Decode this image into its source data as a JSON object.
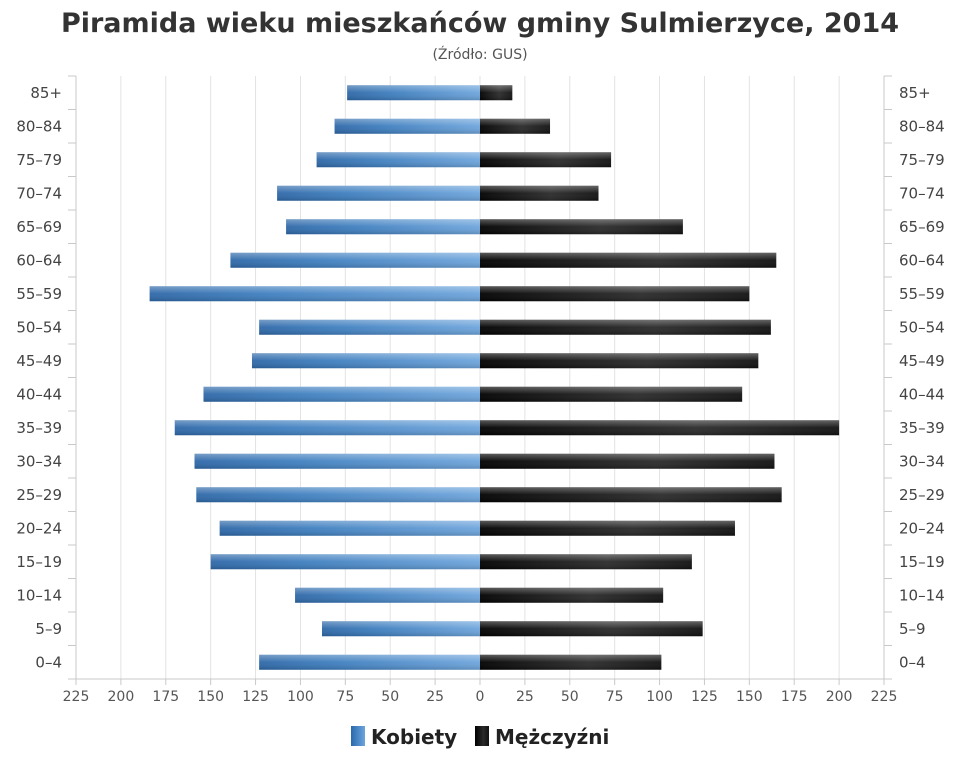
{
  "chart_data": {
    "type": "bar",
    "orientation": "horizontal-pyramid",
    "title": "Piramida wieku mieszkańców gminy Sulmierzyce, 2014",
    "subtitle": "(Źródło: GUS)",
    "categories": [
      "85+",
      "80–84",
      "75–79",
      "70–74",
      "65–69",
      "60–64",
      "55–59",
      "50–54",
      "45–49",
      "40–44",
      "35–39",
      "30–34",
      "25–29",
      "20–24",
      "15–19",
      "10–14",
      "5–9",
      "0–4"
    ],
    "series": [
      {
        "name": "Kobiety",
        "side": "left",
        "color": "#3f7fbf",
        "values": [
          74,
          81,
          91,
          113,
          108,
          139,
          184,
          123,
          127,
          154,
          170,
          159,
          158,
          145,
          150,
          103,
          88,
          123
        ]
      },
      {
        "name": "Mężczyźni",
        "side": "right",
        "color": "#1a1a1a",
        "values": [
          18,
          39,
          73,
          66,
          113,
          165,
          150,
          162,
          155,
          146,
          200,
          164,
          168,
          142,
          118,
          102,
          124,
          101
        ]
      }
    ],
    "xlim": [
      -225,
      225
    ],
    "x_ticks": [
      "225",
      "200",
      "175",
      "150",
      "125",
      "100",
      "75",
      "50",
      "25",
      "0",
      "25",
      "50",
      "75",
      "100",
      "125",
      "150",
      "175",
      "200",
      "225"
    ],
    "grid": true,
    "legend": "bottom-center"
  }
}
